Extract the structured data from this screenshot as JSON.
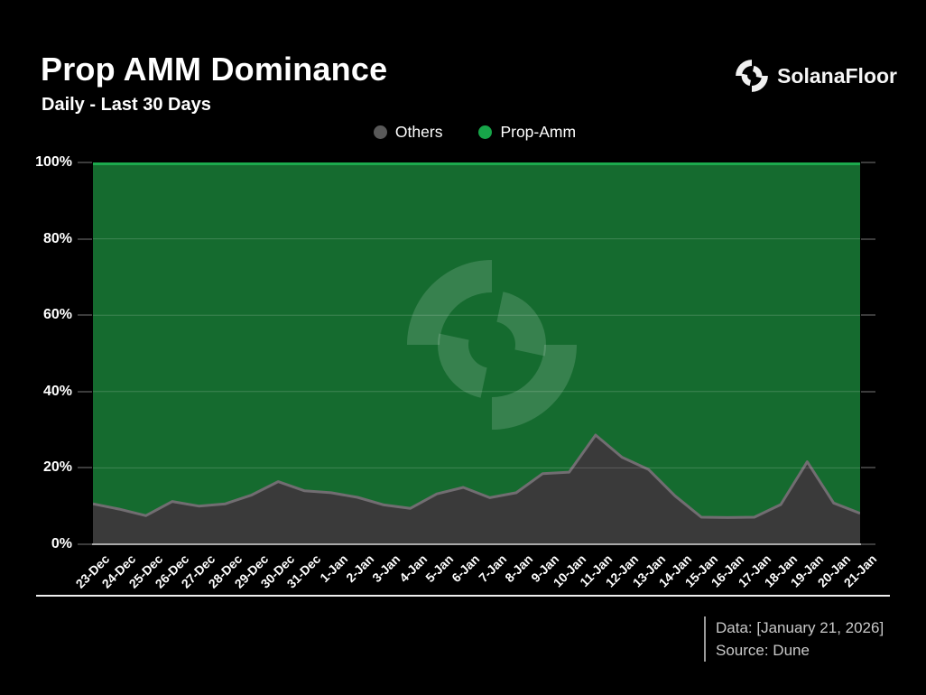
{
  "header": {
    "title": "Prop AMM Dominance",
    "subtitle": "Daily - Last 30 Days",
    "brand": "SolanaFloor"
  },
  "legend": {
    "items": [
      {
        "label": "Others",
        "color": "#595959"
      },
      {
        "label": "Prop-Amm",
        "color": "#17A549"
      }
    ]
  },
  "footer": {
    "data_line": "Data: [January 21, 2026]",
    "source_line": "Source: Dune"
  },
  "chart_data": {
    "type": "area",
    "variant": "100% stacked area, daily",
    "title": "Prop AMM Dominance",
    "subtitle": "Daily - Last 30 Days",
    "xlabel": "",
    "ylabel": "",
    "ylim": [
      0,
      100
    ],
    "grid": "horizontal at 20/40/60/80%",
    "legend_position": "top-center",
    "y_tick_labels": [
      "0%",
      "20%",
      "40%",
      "60%",
      "80%",
      "100%"
    ],
    "categories": [
      "23-Dec",
      "24-Dec",
      "25-Dec",
      "26-Dec",
      "27-Dec",
      "28-Dec",
      "29-Dec",
      "30-Dec",
      "31-Dec",
      "1-Jan",
      "2-Jan",
      "3-Jan",
      "4-Jan",
      "5-Jan",
      "6-Jan",
      "7-Jan",
      "8-Jan",
      "9-Jan",
      "10-Jan",
      "11-Jan",
      "12-Jan",
      "13-Jan",
      "14-Jan",
      "15-Jan",
      "16-Jan",
      "17-Jan",
      "18-Jan",
      "19-Jan",
      "20-Jan",
      "21-Jan"
    ],
    "series": [
      {
        "name": "Others",
        "values": [
          10.6,
          9.2,
          7.5,
          11.2,
          10.0,
          10.6,
          12.9,
          16.4,
          14.0,
          13.5,
          12.3,
          10.3,
          9.4,
          13.2,
          14.9,
          12.2,
          13.5,
          18.5,
          18.9,
          28.6,
          22.8,
          19.6,
          12.7,
          7.1,
          7.0,
          7.1,
          10.4,
          21.6,
          10.8,
          8.1
        ]
      },
      {
        "name": "Prop-Amm",
        "values": [
          89.4,
          90.8,
          92.5,
          88.8,
          90.0,
          89.4,
          87.1,
          83.6,
          86.0,
          86.5,
          87.7,
          89.7,
          90.6,
          86.8,
          85.1,
          87.8,
          86.5,
          81.5,
          81.1,
          71.4,
          77.2,
          80.4,
          87.3,
          92.9,
          93.0,
          92.9,
          89.6,
          78.4,
          89.2,
          91.9
        ]
      }
    ],
    "style": {
      "background": "#000000",
      "others_fill": "#3A3A3A",
      "others_stroke": "#716D71",
      "propamm_fill": "#156B2F",
      "propamm_stroke": "#1CA94D",
      "gridline": "rgba(255,255,255,0.18)",
      "watermark": "rgba(255,255,255,0.15)",
      "axis_line": "#A8A8A8",
      "tick_color": "#3C3C3C"
    }
  }
}
